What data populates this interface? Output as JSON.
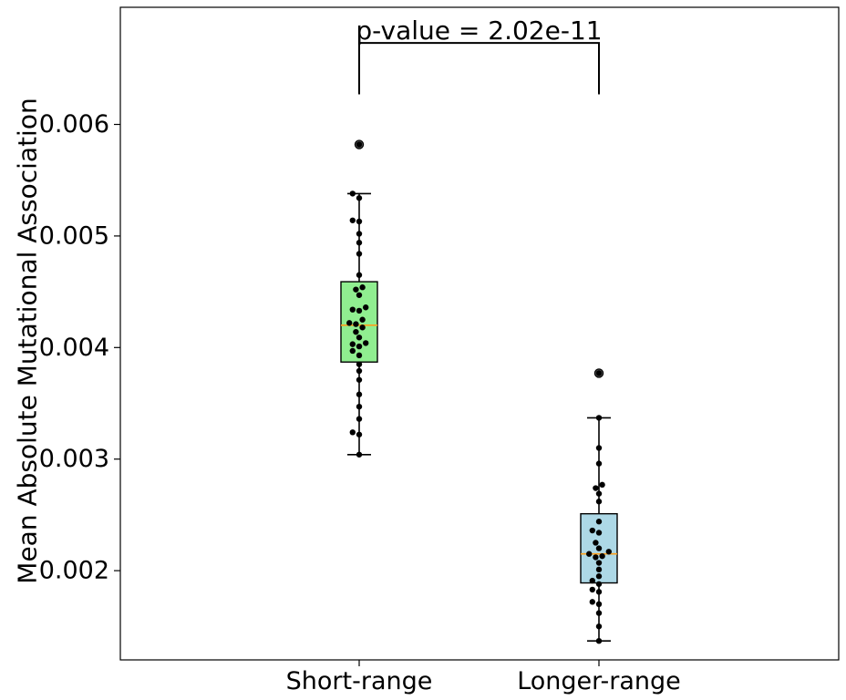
{
  "chart_data": {
    "type": "box",
    "title": "",
    "xlabel": "",
    "ylabel": "Mean Absolute Mutational Association",
    "categories": [
      "Short-range",
      "Longer-range"
    ],
    "ylim": [
      0.0012,
      0.00705
    ],
    "yticks": [
      0.002,
      0.003,
      0.004,
      0.005,
      0.006
    ],
    "ytick_labels": [
      "0.002",
      "0.003",
      "0.004",
      "0.005",
      "0.006"
    ],
    "grid": false,
    "legend": "none",
    "boxes": [
      {
        "category": "Short-range",
        "color": "#90ee90",
        "median": 0.0042,
        "q1": 0.00387,
        "q3": 0.00459,
        "whisker_low": 0.00304,
        "whisker_high": 0.00538,
        "outliers": [
          0.00582
        ],
        "points": [
          0.00582,
          0.00538,
          0.00534,
          0.00514,
          0.00513,
          0.00502,
          0.00494,
          0.00484,
          0.00465,
          0.00454,
          0.00452,
          0.00447,
          0.00436,
          0.00434,
          0.00433,
          0.00425,
          0.00422,
          0.00421,
          0.00418,
          0.00414,
          0.00409,
          0.00404,
          0.00403,
          0.00401,
          0.00397,
          0.00393,
          0.00385,
          0.00379,
          0.00371,
          0.00358,
          0.00347,
          0.00336,
          0.00324,
          0.00322,
          0.00304
        ]
      },
      {
        "category": "Longer-range",
        "color": "#add8e6",
        "median": 0.00215,
        "q1": 0.00189,
        "q3": 0.00251,
        "whisker_low": 0.00137,
        "whisker_high": 0.00337,
        "outliers": [
          0.00377
        ],
        "points": [
          0.00377,
          0.00337,
          0.0031,
          0.00296,
          0.00277,
          0.00274,
          0.00269,
          0.00262,
          0.00244,
          0.00236,
          0.00234,
          0.00225,
          0.0022,
          0.00217,
          0.00215,
          0.00213,
          0.00212,
          0.00207,
          0.00201,
          0.00195,
          0.00191,
          0.00188,
          0.00183,
          0.00181,
          0.00172,
          0.0017,
          0.00162,
          0.0015,
          0.00137
        ]
      }
    ],
    "annotation": {
      "text": "p-value = 2.02e-11",
      "bracket_y": 0.00627,
      "bracket_top": 0.00673
    }
  }
}
